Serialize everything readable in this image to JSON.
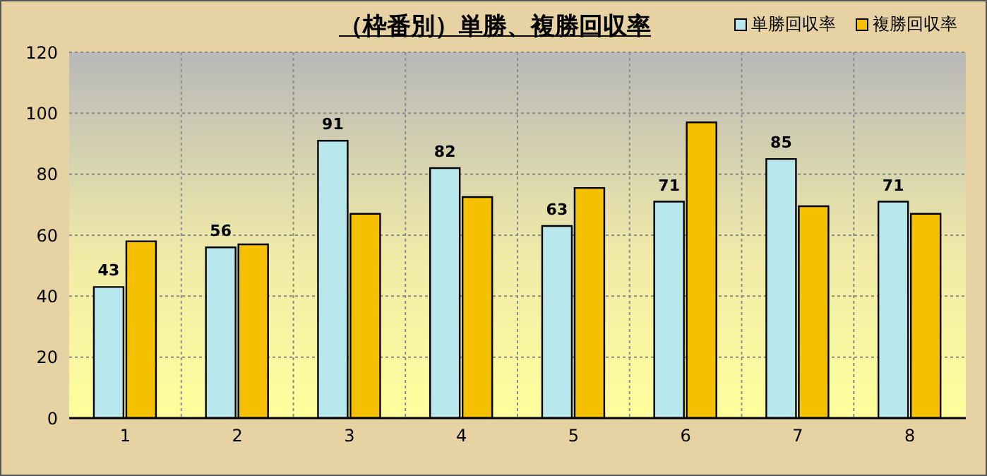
{
  "chart_data": {
    "type": "bar",
    "title": "（枠番別）単勝、複勝回収率",
    "categories": [
      "1",
      "2",
      "3",
      "4",
      "5",
      "6",
      "7",
      "8"
    ],
    "series": [
      {
        "name": "単勝回収率",
        "color": "#b8e8ec",
        "values": [
          43,
          56,
          91,
          82,
          63,
          71,
          85,
          71
        ],
        "value_labels": [
          "43",
          "56",
          "91",
          "82",
          "63",
          "71",
          "85",
          "71"
        ]
      },
      {
        "name": "複勝回収率",
        "color": "#f5c000",
        "values": [
          58,
          57,
          67,
          72.5,
          75.5,
          97,
          69.5,
          67
        ]
      }
    ],
    "ylim": [
      0,
      120
    ],
    "yticks": [
      0,
      20,
      40,
      60,
      80,
      100,
      120
    ],
    "grid": true,
    "legend": "top right"
  }
}
